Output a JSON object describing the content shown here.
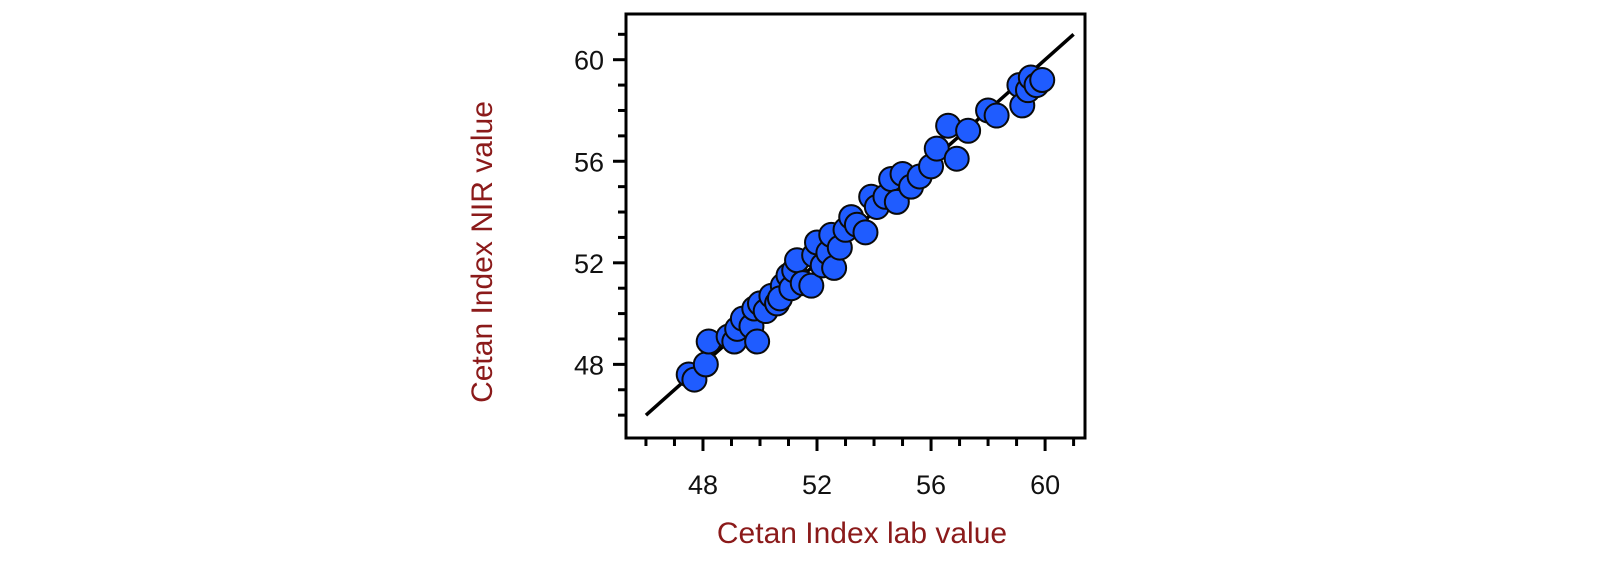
{
  "chart_data": {
    "type": "scatter",
    "title": "",
    "xlabel": "Cetan Index lab value",
    "ylabel": "Cetan Index NIR value",
    "xlim": [
      45.3,
      61.4
    ],
    "ylim": [
      45.1,
      61.8
    ],
    "x_ticks": [
      48,
      52,
      56,
      60
    ],
    "y_ticks": [
      48,
      52,
      56,
      60
    ],
    "grid": false,
    "legend": "none",
    "reference_line": {
      "x": [
        46,
        61
      ],
      "y": [
        46,
        61
      ]
    },
    "series": [
      {
        "marker": "circle",
        "points": [
          [
            47.5,
            47.6
          ],
          [
            47.7,
            47.4
          ],
          [
            48.1,
            48.0
          ],
          [
            48.2,
            48.9
          ],
          [
            48.9,
            49.1
          ],
          [
            49.1,
            48.9
          ],
          [
            49.2,
            49.4
          ],
          [
            49.4,
            49.8
          ],
          [
            49.7,
            49.5
          ],
          [
            49.9,
            48.9
          ],
          [
            49.8,
            50.2
          ],
          [
            50.0,
            50.4
          ],
          [
            50.2,
            50.1
          ],
          [
            50.4,
            50.7
          ],
          [
            50.6,
            50.4
          ],
          [
            50.8,
            51.1
          ],
          [
            50.7,
            50.6
          ],
          [
            51.0,
            51.5
          ],
          [
            51.1,
            51.0
          ],
          [
            51.2,
            51.7
          ],
          [
            51.3,
            52.1
          ],
          [
            51.5,
            51.2
          ],
          [
            51.8,
            51.1
          ],
          [
            51.9,
            52.3
          ],
          [
            52.0,
            52.8
          ],
          [
            52.2,
            51.9
          ],
          [
            52.4,
            52.4
          ],
          [
            52.5,
            53.1
          ],
          [
            52.6,
            51.8
          ],
          [
            52.8,
            52.6
          ],
          [
            53.0,
            53.3
          ],
          [
            53.2,
            53.8
          ],
          [
            53.4,
            53.5
          ],
          [
            53.7,
            53.2
          ],
          [
            53.9,
            54.6
          ],
          [
            54.1,
            54.2
          ],
          [
            54.4,
            54.6
          ],
          [
            54.6,
            55.3
          ],
          [
            54.8,
            54.4
          ],
          [
            55.0,
            55.5
          ],
          [
            55.3,
            55.0
          ],
          [
            55.6,
            55.4
          ],
          [
            56.0,
            55.8
          ],
          [
            56.2,
            56.5
          ],
          [
            56.6,
            57.4
          ],
          [
            56.9,
            56.1
          ],
          [
            57.3,
            57.2
          ],
          [
            58.0,
            58.0
          ],
          [
            58.3,
            57.8
          ],
          [
            59.1,
            59.0
          ],
          [
            59.2,
            58.2
          ],
          [
            59.4,
            58.8
          ],
          [
            59.5,
            59.3
          ],
          [
            59.7,
            59.0
          ],
          [
            59.9,
            59.2
          ]
        ]
      }
    ],
    "colors": {
      "marker_fill": "#1f5cff",
      "marker_stroke": "#0a0a0a",
      "line": "#000000",
      "axis": "#000000",
      "axis_title": "#8b1a1a",
      "tick_label": "#111111"
    }
  }
}
